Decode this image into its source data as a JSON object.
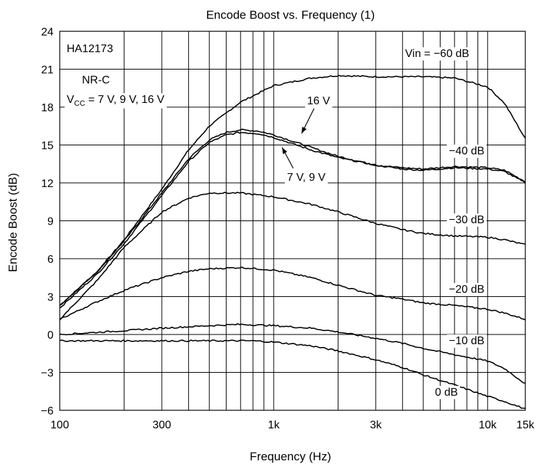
{
  "chart_data": {
    "type": "line",
    "title": "Encode Boost vs. Frequency (1)",
    "xlabel": "Frequency (Hz)",
    "ylabel": "Encode Boost (dB)",
    "x_scale": "log",
    "xlim": [
      100,
      15000
    ],
    "ylim": [
      -6,
      24
    ],
    "x_ticks": [
      100,
      300,
      1000,
      3000,
      10000,
      15000
    ],
    "x_tick_labels": [
      "100",
      "300",
      "1k",
      "3k",
      "10k",
      "15k"
    ],
    "y_ticks": [
      -6,
      -3,
      0,
      3,
      6,
      9,
      12,
      15,
      18,
      21,
      24
    ],
    "y_tick_labels": [
      "−6",
      "−3",
      "0",
      "3",
      "6",
      "9",
      "12",
      "15",
      "18",
      "21",
      "24"
    ],
    "grid": true,
    "annotations": {
      "device": "HA12173",
      "mode": "NR-C",
      "vcc_prefix": "V",
      "vcc_sub": "CC",
      "vcc_rest": " = 7 V, 9 V, 16 V",
      "label_16v": "16 V",
      "label_7v9v": "7 V, 9 V",
      "level_minus60": "Vin = −60 dB",
      "level_minus40": "−40 dB",
      "level_minus30": "−30 dB",
      "level_minus20": "−20 dB",
      "level_minus10": "−10 dB",
      "level_0": "0 dB"
    },
    "series": [
      {
        "name": "Vin = −60 dB",
        "x": [
          100,
          150,
          200,
          300,
          400,
          500,
          700,
          1000,
          1500,
          2000,
          3000,
          4000,
          5000,
          7000,
          10000,
          12000,
          15000
        ],
        "y": [
          2.3,
          5.0,
          7.5,
          11.5,
          14.6,
          16.5,
          18.4,
          19.7,
          20.3,
          20.5,
          20.4,
          20.4,
          20.4,
          20.3,
          19.6,
          18.3,
          15.5
        ]
      },
      {
        "name": "16 V",
        "x": [
          100,
          150,
          200,
          300,
          400,
          500,
          600,
          700,
          850,
          1000,
          1500,
          2000,
          3000,
          4000,
          5000,
          7000,
          10000,
          12000,
          15000
        ],
        "y": [
          2.3,
          5.0,
          7.4,
          11.2,
          13.9,
          15.4,
          16.0,
          16.2,
          16.1,
          15.8,
          14.8,
          14.1,
          13.4,
          13.2,
          13.1,
          13.3,
          13.2,
          13.0,
          12.1
        ]
      },
      {
        "name": "7 V, 9 V",
        "x": [
          100,
          150,
          200,
          300,
          400,
          500,
          600,
          700,
          850,
          1000,
          1500,
          2000,
          3000,
          4000,
          5000,
          7000,
          10000,
          12000,
          15000
        ],
        "y": [
          2.1,
          4.8,
          7.2,
          11.0,
          13.7,
          15.2,
          15.8,
          16.0,
          15.9,
          15.6,
          14.6,
          14.0,
          13.4,
          13.1,
          13.0,
          13.2,
          13.1,
          12.9,
          12.0
        ]
      },
      {
        "name": "−30 dB",
        "x": [
          100,
          150,
          200,
          300,
          400,
          500,
          700,
          1000,
          1500,
          2000,
          3000,
          4000,
          5000,
          7000,
          10000,
          12000,
          15000
        ],
        "y": [
          1.2,
          4.3,
          6.9,
          9.7,
          10.8,
          11.2,
          11.2,
          10.9,
          10.3,
          9.7,
          8.8,
          8.3,
          8.0,
          7.8,
          7.7,
          7.5,
          7.1
        ]
      },
      {
        "name": "−20 dB",
        "x": [
          100,
          150,
          200,
          300,
          400,
          500,
          700,
          1000,
          1500,
          2000,
          3000,
          4000,
          5000,
          7000,
          10000,
          12000,
          15000
        ],
        "y": [
          1.2,
          2.6,
          3.5,
          4.5,
          5.0,
          5.2,
          5.3,
          5.1,
          4.5,
          3.9,
          3.1,
          2.8,
          2.5,
          2.3,
          2.0,
          1.7,
          1.2
        ]
      },
      {
        "name": "−10 dB",
        "x": [
          100,
          200,
          300,
          500,
          700,
          1000,
          1500,
          2000,
          3000,
          4000,
          5000,
          7000,
          10000,
          12000,
          15000
        ],
        "y": [
          0.0,
          0.3,
          0.5,
          0.7,
          0.8,
          0.7,
          0.5,
          0.2,
          -0.3,
          -0.7,
          -1.1,
          -1.6,
          -2.1,
          -2.7,
          -3.9
        ]
      },
      {
        "name": "0 dB",
        "x": [
          100,
          300,
          500,
          800,
          1000,
          1500,
          2000,
          3000,
          4000,
          5000,
          7000,
          10000,
          12000,
          15000
        ],
        "y": [
          -0.5,
          -0.5,
          -0.5,
          -0.5,
          -0.6,
          -0.9,
          -1.3,
          -2.0,
          -2.6,
          -3.2,
          -4.0,
          -4.9,
          -5.3,
          -5.9
        ]
      }
    ]
  }
}
